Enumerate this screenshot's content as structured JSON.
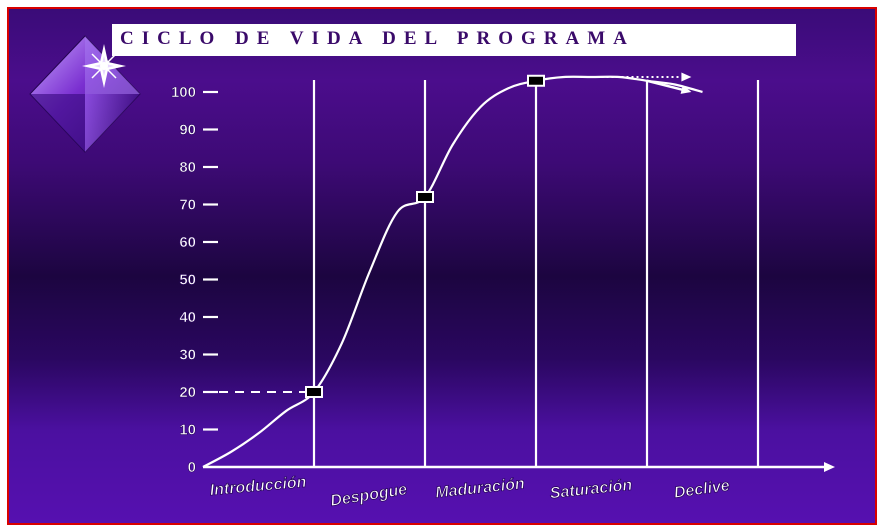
{
  "title": "CICLO DE VIDA DEL PROGRAMA",
  "colors": {
    "background_top": "#3a0c78",
    "background_mid": "#1c0540",
    "background_bottom": "#5610b0",
    "border": "#d80000",
    "title_text": "#3a0a6a",
    "lines": "#ffffff",
    "marker": "#000000"
  },
  "icons": [
    "purple-diamond-sparkle-logo"
  ],
  "chart_data": {
    "type": "line",
    "title": "CICLO DE VIDA DEL PROGRAMA",
    "xlabel": "",
    "ylabel": "",
    "ylim": [
      0,
      100
    ],
    "yticks": [
      0,
      10,
      20,
      30,
      40,
      50,
      60,
      70,
      80,
      90,
      100
    ],
    "categories": [
      "Introducción",
      "Despogue",
      "Maduración",
      "Saturación",
      "Declive"
    ],
    "grid": "vertical lines at stage boundaries",
    "series": [
      {
        "x": [
          0,
          0.25,
          0.5,
          0.75,
          1.0,
          1.25,
          1.5,
          1.75,
          2.0,
          2.25,
          2.5,
          2.75,
          3.0,
          3.25,
          3.5,
          3.75,
          4.0,
          4.25,
          4.5
        ],
        "y": [
          0,
          4,
          9,
          15,
          20,
          33,
          52,
          68,
          72,
          86,
          96,
          101,
          103,
          104,
          104,
          104,
          103,
          102,
          100
        ]
      }
    ],
    "markers": [
      {
        "stage": "Despogue",
        "x": 1.0,
        "y": 20
      },
      {
        "stage": "Maduración",
        "x": 2.0,
        "y": 72
      },
      {
        "stage": "Saturación",
        "x": 3.0,
        "y": 103
      }
    ],
    "reference_line_y": 20,
    "projections": [
      {
        "style": "dotted",
        "x": [
          3.5,
          4.4
        ],
        "y": [
          104,
          104
        ]
      },
      {
        "style": "solid",
        "x": [
          4.0,
          4.4
        ],
        "y": [
          103,
          100
        ]
      }
    ]
  }
}
